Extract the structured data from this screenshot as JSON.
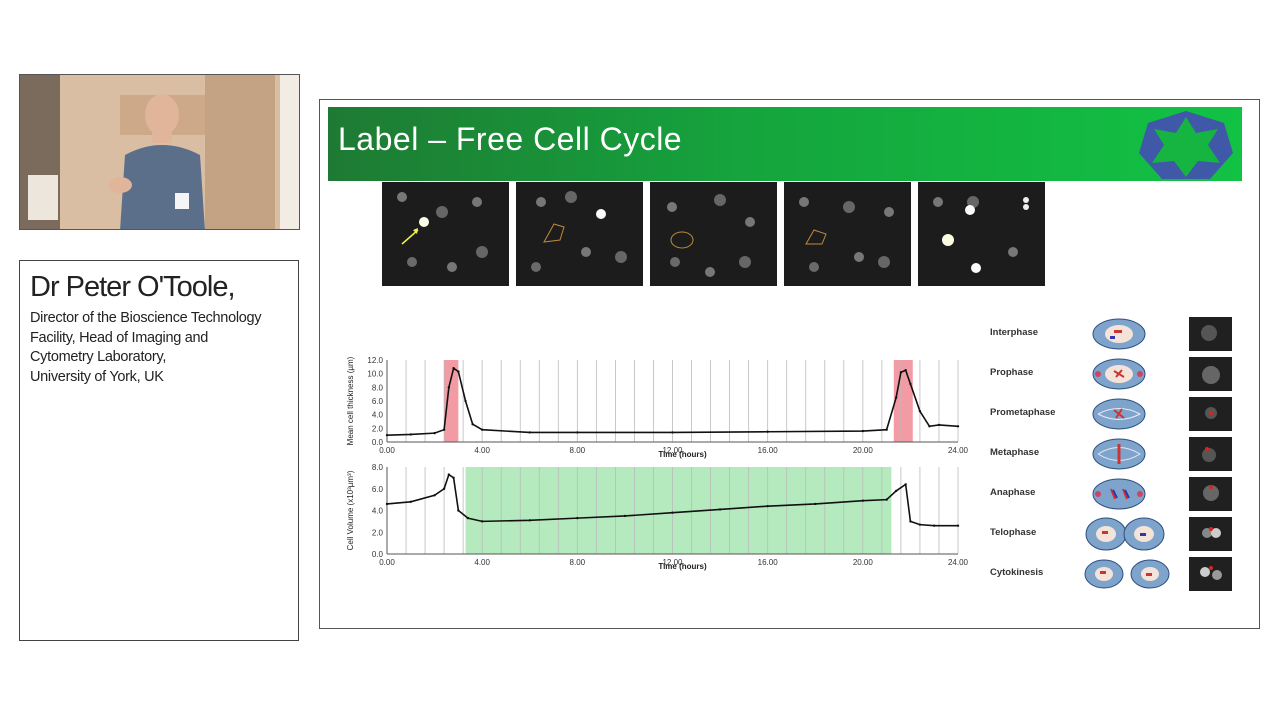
{
  "speaker": {
    "name": "Dr Peter O'Toole,",
    "lines": [
      "Director of the Bioscience Technology",
      "Facility, Head of Imaging and",
      "Cytometry Laboratory,",
      "University of York, UK"
    ]
  },
  "slide": {
    "title": "Label – Free Cell Cycle",
    "banner_colors": [
      "#1e7a33",
      "#12c244"
    ],
    "logo_icon": "blue-green-star-logo",
    "phases": [
      {
        "label": "Interphase"
      },
      {
        "label": "Prophase"
      },
      {
        "label": "Prometaphase"
      },
      {
        "label": "Metaphase"
      },
      {
        "label": "Anaphase"
      },
      {
        "label": "Telophase"
      },
      {
        "label": "Cytokinesis"
      }
    ]
  },
  "chart_data": [
    {
      "type": "line",
      "ylabel": "Mean cell thickness (µm)",
      "xlabel": "Time (hours)",
      "xlim": [
        0,
        24
      ],
      "ylim": [
        0,
        12
      ],
      "xticks": [
        "0.00",
        "4.00",
        "8.00",
        "12.00",
        "16.00",
        "20.00",
        "24.00"
      ],
      "yticks": [
        "0.0",
        "2.0",
        "4.0",
        "6.0",
        "8.0",
        "10.0",
        "12.0"
      ],
      "highlight_color": "#f08a95",
      "highlights": [
        [
          2.4,
          3.0
        ],
        [
          21.3,
          22.1
        ]
      ],
      "x": [
        0,
        1,
        2,
        2.4,
        2.6,
        2.8,
        3.0,
        3.3,
        3.6,
        4,
        6,
        8,
        12,
        16,
        20,
        21,
        21.4,
        21.6,
        21.8,
        22.0,
        22.4,
        22.8,
        23.2,
        24
      ],
      "y": [
        1.0,
        1.1,
        1.3,
        1.8,
        8.0,
        10.8,
        10.3,
        6.0,
        2.6,
        1.8,
        1.4,
        1.4,
        1.4,
        1.5,
        1.6,
        1.8,
        6.5,
        10.2,
        10.5,
        8.5,
        4.5,
        2.3,
        2.5,
        2.3
      ]
    },
    {
      "type": "line",
      "ylabel": "Cell Volume (x10³µm³)",
      "xlabel": "Time (hours)",
      "xlim": [
        0,
        24
      ],
      "ylim": [
        0,
        8
      ],
      "xticks": [
        "0.00",
        "4.00",
        "8.00",
        "12.00",
        "16.00",
        "20.00",
        "24.00"
      ],
      "yticks": [
        "0.0",
        "2.0",
        "4.0",
        "6.0",
        "8.0"
      ],
      "highlight_color": "#a8e6b4",
      "highlights": [
        [
          3.3,
          21.2
        ]
      ],
      "x": [
        0,
        1,
        2,
        2.4,
        2.6,
        2.8,
        3.0,
        3.4,
        4,
        6,
        8,
        10,
        12,
        14,
        16,
        18,
        20,
        21,
        21.4,
        21.8,
        22.0,
        22.4,
        23,
        24
      ],
      "y": [
        4.6,
        4.8,
        5.4,
        6.0,
        7.3,
        7.0,
        4.0,
        3.3,
        3.0,
        3.1,
        3.3,
        3.5,
        3.8,
        4.1,
        4.4,
        4.6,
        4.9,
        5.0,
        5.8,
        6.4,
        3.0,
        2.7,
        2.6,
        2.6
      ]
    }
  ]
}
